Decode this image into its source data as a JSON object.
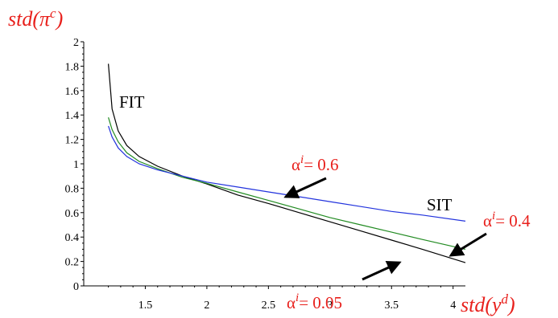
{
  "chart_data": {
    "type": "line",
    "x_axis": {
      "ticks": [
        "1.5",
        "2",
        "2.5",
        "3",
        "3.5",
        "4"
      ],
      "tick_values": [
        1.5,
        2,
        2.5,
        3,
        3.5,
        4
      ],
      "range": [
        1.0,
        4.1
      ],
      "label_base": "std(y",
      "label_sup": "d",
      "label_close": ")"
    },
    "y_axis": {
      "ticks": [
        "0",
        "0.2",
        "0.4",
        "0.6",
        "0.8",
        "1",
        "1.2",
        "1.4",
        "1.6",
        "1.8",
        "2"
      ],
      "tick_values": [
        0,
        0.2,
        0.4,
        0.6,
        0.8,
        1,
        1.2,
        1.4,
        1.6,
        1.8,
        2
      ],
      "range": [
        0,
        2
      ],
      "label_base": "std(π",
      "label_sup": "c",
      "label_close": ")"
    },
    "series": [
      {
        "key": "a005",
        "color": "#000000",
        "points": [
          [
            1.2,
            1.82
          ],
          [
            1.23,
            1.45
          ],
          [
            1.28,
            1.27
          ],
          [
            1.35,
            1.15
          ],
          [
            1.45,
            1.06
          ],
          [
            1.6,
            0.98
          ],
          [
            1.8,
            0.9
          ],
          [
            2.0,
            0.835
          ],
          [
            2.25,
            0.745
          ],
          [
            2.5,
            0.675
          ],
          [
            2.75,
            0.6
          ],
          [
            3.0,
            0.525
          ],
          [
            3.25,
            0.45
          ],
          [
            3.5,
            0.375
          ],
          [
            3.75,
            0.3
          ],
          [
            4.1,
            0.19
          ]
        ]
      },
      {
        "key": "a04",
        "color": "#228b22",
        "points": [
          [
            1.2,
            1.38
          ],
          [
            1.23,
            1.28
          ],
          [
            1.28,
            1.18
          ],
          [
            1.35,
            1.09
          ],
          [
            1.45,
            1.02
          ],
          [
            1.6,
            0.96
          ],
          [
            1.8,
            0.89
          ],
          [
            2.0,
            0.84
          ],
          [
            2.25,
            0.77
          ],
          [
            2.5,
            0.7
          ],
          [
            2.75,
            0.63
          ],
          [
            3.0,
            0.56
          ],
          [
            3.25,
            0.5
          ],
          [
            3.5,
            0.44
          ],
          [
            3.75,
            0.38
          ],
          [
            4.1,
            0.3
          ]
        ]
      },
      {
        "key": "a06",
        "color": "#2233dd",
        "points": [
          [
            1.2,
            1.31
          ],
          [
            1.23,
            1.22
          ],
          [
            1.28,
            1.13
          ],
          [
            1.35,
            1.06
          ],
          [
            1.45,
            1.0
          ],
          [
            1.6,
            0.95
          ],
          [
            1.8,
            0.9
          ],
          [
            2.0,
            0.85
          ],
          [
            2.25,
            0.81
          ],
          [
            2.5,
            0.77
          ],
          [
            2.75,
            0.73
          ],
          [
            3.0,
            0.69
          ],
          [
            3.25,
            0.65
          ],
          [
            3.5,
            0.61
          ],
          [
            3.75,
            0.58
          ],
          [
            4.1,
            0.53
          ]
        ]
      }
    ],
    "annotations": {
      "fit": "FIT",
      "sit": "SIT",
      "alpha_06": {
        "symbol": "α",
        "sup": "i",
        "text": "= 0.6"
      },
      "alpha_04": {
        "symbol": "α",
        "sup": "i",
        "text": "= 0.4"
      },
      "alpha_005": {
        "symbol": "α",
        "sup": "i",
        "text": "= 0.05"
      }
    },
    "grid": false,
    "legend": "none"
  }
}
